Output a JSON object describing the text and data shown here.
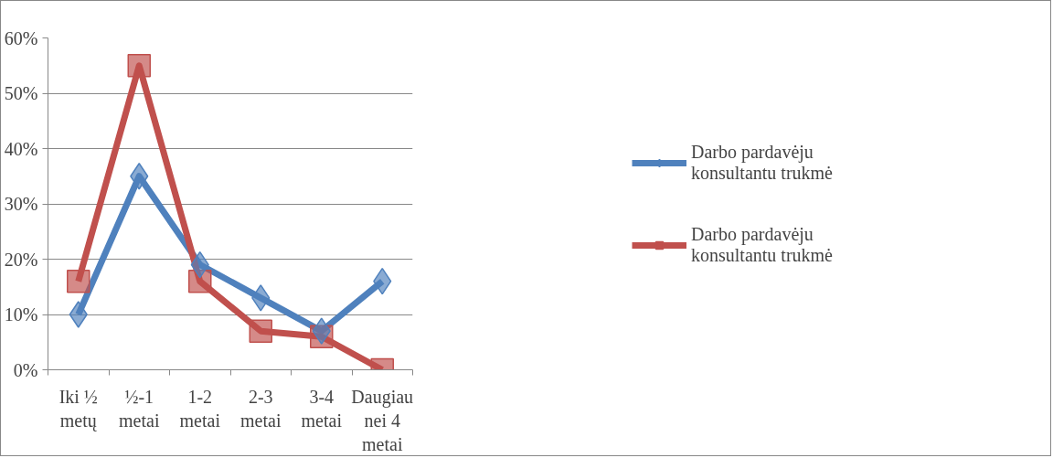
{
  "chart_data": {
    "type": "line",
    "categories": [
      "Iki ½ metų",
      "½-1 metai",
      "1-2 metai",
      "2-3 metai",
      "3-4 metai",
      "Daugiau nei 4 metai"
    ],
    "series": [
      {
        "name": "Darbo pardavėju konsultantu trukmė",
        "color": "#4f81bd",
        "marker": "diamond",
        "values": [
          10,
          35,
          19,
          13,
          7,
          16
        ]
      },
      {
        "name": "Darbo pardavėju konsultantu trukmė",
        "color": "#c0504d",
        "marker": "square",
        "values": [
          16,
          55,
          16,
          7,
          6,
          0
        ]
      }
    ],
    "ylim": [
      0,
      60
    ],
    "yticks": [
      {
        "value": 0,
        "label": "0%"
      },
      {
        "value": 10,
        "label": "10%"
      },
      {
        "value": 20,
        "label": "20%"
      },
      {
        "value": 30,
        "label": "30%"
      },
      {
        "value": 40,
        "label": "40%"
      },
      {
        "value": 50,
        "label": "50%"
      },
      {
        "value": 60,
        "label": "60%"
      }
    ],
    "grid": "y",
    "legend": "right",
    "line_style": "solid"
  }
}
